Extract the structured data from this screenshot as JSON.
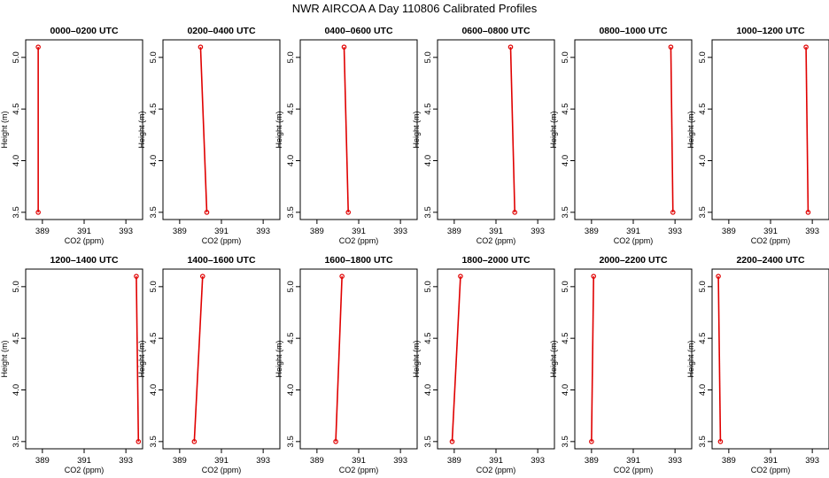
{
  "figure_title": "NWR AIRCOA A  Day 110806  Calibrated Profiles",
  "colors": {
    "profile": "#e00000",
    "axes": "#000000"
  },
  "chart_data": [
    {
      "type": "line",
      "title": "0000–0200 UTC",
      "xlabel": "CO2 (ppm)",
      "ylabel": "Height (m)",
      "xlim": [
        388.2,
        393.8
      ],
      "ylim": [
        3.43,
        5.17
      ],
      "x_ticks": [
        389,
        391,
        393
      ],
      "y_ticks": [
        3.5,
        4.0,
        4.5,
        5.0
      ],
      "series": [
        {
          "x": [
            388.8,
            388.8
          ],
          "y": [
            3.5,
            5.1
          ]
        }
      ]
    },
    {
      "type": "line",
      "title": "0200–0400 UTC",
      "xlabel": "CO2 (ppm)",
      "ylabel": "Height (m)",
      "xlim": [
        388.2,
        393.8
      ],
      "ylim": [
        3.43,
        5.17
      ],
      "x_ticks": [
        389,
        391,
        393
      ],
      "y_ticks": [
        3.5,
        4.0,
        4.5,
        5.0
      ],
      "series": [
        {
          "x": [
            390.3,
            390.0
          ],
          "y": [
            3.5,
            5.1
          ]
        }
      ]
    },
    {
      "type": "line",
      "title": "0400–0600 UTC",
      "xlabel": "CO2 (ppm)",
      "ylabel": "Height (m)",
      "xlim": [
        388.2,
        393.8
      ],
      "ylim": [
        3.43,
        5.17
      ],
      "x_ticks": [
        389,
        391,
        393
      ],
      "y_ticks": [
        3.5,
        4.0,
        4.5,
        5.0
      ],
      "series": [
        {
          "x": [
            390.5,
            390.3
          ],
          "y": [
            3.5,
            5.1
          ]
        }
      ]
    },
    {
      "type": "line",
      "title": "0600–0800 UTC",
      "xlabel": "CO2 (ppm)",
      "ylabel": "Height (m)",
      "xlim": [
        388.2,
        393.8
      ],
      "ylim": [
        3.43,
        5.17
      ],
      "x_ticks": [
        389,
        391,
        393
      ],
      "y_ticks": [
        3.5,
        4.0,
        4.5,
        5.0
      ],
      "series": [
        {
          "x": [
            391.9,
            391.7
          ],
          "y": [
            3.5,
            5.1
          ]
        }
      ]
    },
    {
      "type": "line",
      "title": "0800–1000 UTC",
      "xlabel": "CO2 (ppm)",
      "ylabel": "Height (m)",
      "xlim": [
        388.2,
        393.8
      ],
      "ylim": [
        3.43,
        5.17
      ],
      "x_ticks": [
        389,
        391,
        393
      ],
      "y_ticks": [
        3.5,
        4.0,
        4.5,
        5.0
      ],
      "series": [
        {
          "x": [
            392.9,
            392.8
          ],
          "y": [
            3.5,
            5.1
          ]
        }
      ]
    },
    {
      "type": "line",
      "title": "1000–1200 UTC",
      "xlabel": "CO2 (ppm)",
      "ylabel": "Height (m)",
      "xlim": [
        388.2,
        393.8
      ],
      "ylim": [
        3.43,
        5.17
      ],
      "x_ticks": [
        389,
        391,
        393
      ],
      "y_ticks": [
        3.5,
        4.0,
        4.5,
        5.0
      ],
      "series": [
        {
          "x": [
            392.8,
            392.7
          ],
          "y": [
            3.5,
            5.1
          ]
        }
      ]
    },
    {
      "type": "line",
      "title": "1200–1400 UTC",
      "xlabel": "CO2 (ppm)",
      "ylabel": "Height (m)",
      "xlim": [
        388.2,
        393.8
      ],
      "ylim": [
        3.43,
        5.17
      ],
      "x_ticks": [
        389,
        391,
        393
      ],
      "y_ticks": [
        3.5,
        4.0,
        4.5,
        5.0
      ],
      "series": [
        {
          "x": [
            393.6,
            393.5
          ],
          "y": [
            3.5,
            5.1
          ]
        }
      ]
    },
    {
      "type": "line",
      "title": "1400–1600 UTC",
      "xlabel": "CO2 (ppm)",
      "ylabel": "Height (m)",
      "xlim": [
        388.2,
        393.8
      ],
      "ylim": [
        3.43,
        5.17
      ],
      "x_ticks": [
        389,
        391,
        393
      ],
      "y_ticks": [
        3.5,
        4.0,
        4.5,
        5.0
      ],
      "series": [
        {
          "x": [
            389.7,
            390.1
          ],
          "y": [
            3.5,
            5.1
          ]
        }
      ]
    },
    {
      "type": "line",
      "title": "1600–1800 UTC",
      "xlabel": "CO2 (ppm)",
      "ylabel": "Height (m)",
      "xlim": [
        388.2,
        393.8
      ],
      "ylim": [
        3.43,
        5.17
      ],
      "x_ticks": [
        389,
        391,
        393
      ],
      "y_ticks": [
        3.5,
        4.0,
        4.5,
        5.0
      ],
      "series": [
        {
          "x": [
            389.9,
            390.2
          ],
          "y": [
            3.5,
            5.1
          ]
        }
      ]
    },
    {
      "type": "line",
      "title": "1800–2000 UTC",
      "xlabel": "CO2 (ppm)",
      "ylabel": "Height (m)",
      "xlim": [
        388.2,
        393.8
      ],
      "ylim": [
        3.43,
        5.17
      ],
      "x_ticks": [
        389,
        391,
        393
      ],
      "y_ticks": [
        3.5,
        4.0,
        4.5,
        5.0
      ],
      "series": [
        {
          "x": [
            388.9,
            389.3
          ],
          "y": [
            3.5,
            5.1
          ]
        }
      ]
    },
    {
      "type": "line",
      "title": "2000–2200 UTC",
      "xlabel": "CO2 (ppm)",
      "ylabel": "Height (m)",
      "xlim": [
        388.2,
        393.8
      ],
      "ylim": [
        3.43,
        5.17
      ],
      "x_ticks": [
        389,
        391,
        393
      ],
      "y_ticks": [
        3.5,
        4.0,
        4.5,
        5.0
      ],
      "series": [
        {
          "x": [
            389.0,
            389.1
          ],
          "y": [
            3.5,
            5.1
          ]
        }
      ]
    },
    {
      "type": "line",
      "title": "2200–2400 UTC",
      "xlabel": "CO2 (ppm)",
      "ylabel": "Height (m)",
      "xlim": [
        388.2,
        393.8
      ],
      "ylim": [
        3.43,
        5.17
      ],
      "x_ticks": [
        389,
        391,
        393
      ],
      "y_ticks": [
        3.5,
        4.0,
        4.5,
        5.0
      ],
      "series": [
        {
          "x": [
            388.6,
            388.5
          ],
          "y": [
            3.5,
            5.1
          ]
        }
      ]
    }
  ]
}
